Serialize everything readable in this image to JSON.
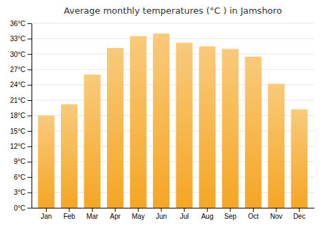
{
  "chart_data": {
    "type": "bar",
    "title": "Average monthly temperatures (°C ) in Jamshoro",
    "categories": [
      "Jan",
      "Feb",
      "Mar",
      "Apr",
      "May",
      "Jun",
      "Jul",
      "Aug",
      "Sep",
      "Oct",
      "Nov",
      "Dec"
    ],
    "values": [
      18.0,
      20.2,
      26.0,
      31.2,
      33.5,
      34.0,
      32.2,
      31.5,
      31.0,
      29.5,
      24.2,
      19.2
    ],
    "color": "#F5A623",
    "ylim": [
      0,
      36
    ],
    "yticks": [
      {
        "value": 0,
        "label": "0°C"
      },
      {
        "value": 3,
        "label": "3°C"
      },
      {
        "value": 6,
        "label": "6°C"
      },
      {
        "value": 9,
        "label": "9°C"
      },
      {
        "value": 12,
        "label": "12°C"
      },
      {
        "value": 15,
        "label": "15°C"
      },
      {
        "value": 18,
        "label": "18°C"
      },
      {
        "value": 21,
        "label": "21°C"
      },
      {
        "value": 24,
        "label": "24°C"
      },
      {
        "value": 27,
        "label": "27°C"
      },
      {
        "value": 30,
        "label": "30°C"
      },
      {
        "value": 33,
        "label": "33°C"
      },
      {
        "value": 36,
        "label": "36°C"
      }
    ],
    "grid": true
  }
}
